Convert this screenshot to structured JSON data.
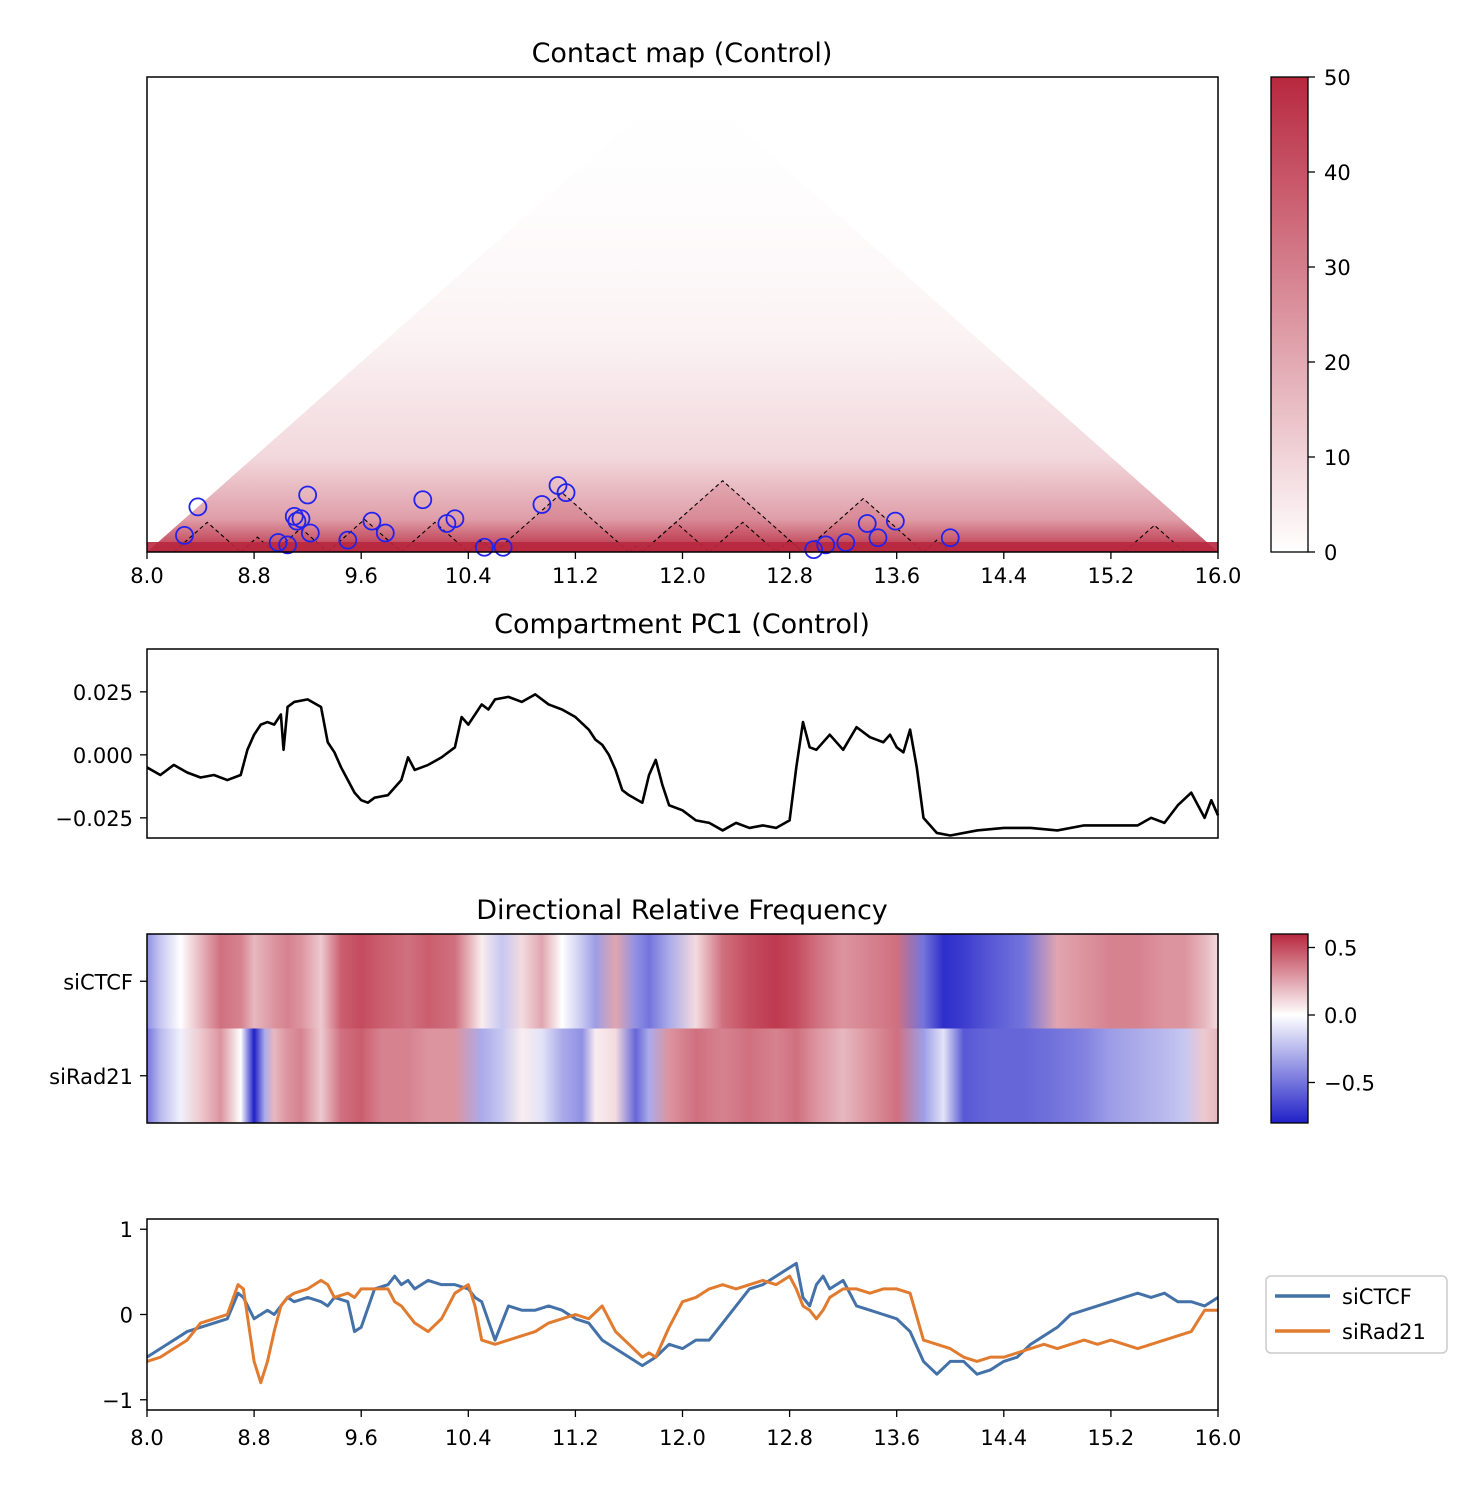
{
  "colors": {
    "map_high": "#b8283f",
    "map_low": "#ffffff",
    "loop_circle": "#2222ee",
    "pc1_line": "#000000",
    "drf_positive": "#b8283f",
    "drf_negative": "#2020c8",
    "sictcf": "#4472a8",
    "sirad21": "#e07b30"
  },
  "chart_data": [
    {
      "type": "heatmap",
      "title": "Contact map (Control)",
      "xlabel": "",
      "ylabel": "",
      "xlim": [
        8.0,
        16.0
      ],
      "xticks": [
        "8.0",
        "8.8",
        "9.6",
        "10.4",
        "11.2",
        "12.0",
        "12.8",
        "13.6",
        "14.4",
        "15.2",
        "16.0"
      ],
      "colorbar": {
        "min": 0,
        "max": 50,
        "ticks": [
          "0",
          "10",
          "20",
          "30",
          "40",
          "50"
        ]
      },
      "tads": [
        [
          8.2,
          8.7
        ],
        [
          8.7,
          8.95
        ],
        [
          8.95,
          9.35
        ],
        [
          9.35,
          9.9
        ],
        [
          9.9,
          10.4
        ],
        [
          10.4,
          10.6
        ],
        [
          10.6,
          11.6
        ],
        [
          11.6,
          11.7
        ],
        [
          11.7,
          12.2
        ],
        [
          11.7,
          12.9
        ],
        [
          12.2,
          12.7
        ],
        [
          12.7,
          12.9
        ],
        [
          12.9,
          13.8
        ],
        [
          13.8,
          14.0
        ],
        [
          15.3,
          15.75
        ]
      ],
      "loops": [
        [
          8.28,
          0.035
        ],
        [
          8.38,
          0.095
        ],
        [
          8.98,
          0.02
        ],
        [
          9.05,
          0.015
        ],
        [
          9.1,
          0.075
        ],
        [
          9.12,
          0.065
        ],
        [
          9.15,
          0.07
        ],
        [
          9.2,
          0.12
        ],
        [
          9.22,
          0.04
        ],
        [
          9.5,
          0.025
        ],
        [
          9.68,
          0.065
        ],
        [
          9.78,
          0.04
        ],
        [
          10.06,
          0.11
        ],
        [
          10.24,
          0.06
        ],
        [
          10.3,
          0.07
        ],
        [
          10.52,
          0.01
        ],
        [
          10.66,
          0.01
        ],
        [
          10.95,
          0.1
        ],
        [
          11.07,
          0.14
        ],
        [
          11.13,
          0.125
        ],
        [
          12.98,
          0.005
        ],
        [
          13.07,
          0.015
        ],
        [
          13.22,
          0.02
        ],
        [
          13.38,
          0.06
        ],
        [
          13.46,
          0.03
        ],
        [
          13.59,
          0.065
        ],
        [
          14.0,
          0.03
        ]
      ]
    },
    {
      "type": "line",
      "title": "Compartment PC1 (Control)",
      "xlabel": "",
      "ylabel": "",
      "xlim": [
        8.0,
        16.0
      ],
      "ylim": [
        -0.033,
        0.042
      ],
      "yticks": [
        "0.025",
        "0.000",
        "−0.025"
      ],
      "x": [
        8.0,
        8.1,
        8.2,
        8.3,
        8.4,
        8.5,
        8.6,
        8.7,
        8.75,
        8.8,
        8.85,
        8.9,
        8.95,
        9.0,
        9.02,
        9.05,
        9.1,
        9.2,
        9.3,
        9.35,
        9.4,
        9.45,
        9.5,
        9.55,
        9.6,
        9.65,
        9.7,
        9.8,
        9.9,
        9.95,
        10.0,
        10.1,
        10.2,
        10.3,
        10.35,
        10.4,
        10.5,
        10.55,
        10.6,
        10.7,
        10.8,
        10.9,
        11.0,
        11.1,
        11.2,
        11.3,
        11.35,
        11.4,
        11.45,
        11.5,
        11.55,
        11.6,
        11.7,
        11.75,
        11.8,
        11.85,
        11.9,
        12.0,
        12.1,
        12.2,
        12.3,
        12.4,
        12.5,
        12.6,
        12.7,
        12.8,
        12.85,
        12.9,
        12.95,
        13.0,
        13.1,
        13.2,
        13.3,
        13.4,
        13.5,
        13.55,
        13.6,
        13.65,
        13.7,
        13.75,
        13.8,
        13.9,
        14.0,
        14.2,
        14.4,
        14.6,
        14.8,
        15.0,
        15.2,
        15.4,
        15.5,
        15.6,
        15.7,
        15.8,
        15.9,
        15.95,
        16.0
      ],
      "y": [
        -0.005,
        -0.008,
        -0.004,
        -0.007,
        -0.009,
        -0.008,
        -0.01,
        -0.008,
        0.002,
        0.008,
        0.012,
        0.013,
        0.012,
        0.016,
        0.002,
        0.019,
        0.021,
        0.022,
        0.019,
        0.005,
        0.001,
        -0.005,
        -0.01,
        -0.015,
        -0.018,
        -0.019,
        -0.017,
        -0.016,
        -0.01,
        -0.001,
        -0.006,
        -0.004,
        -0.001,
        0.003,
        0.015,
        0.012,
        0.02,
        0.018,
        0.022,
        0.023,
        0.021,
        0.024,
        0.02,
        0.018,
        0.015,
        0.01,
        0.006,
        0.004,
        0.0,
        -0.006,
        -0.014,
        -0.016,
        -0.019,
        -0.008,
        -0.002,
        -0.012,
        -0.02,
        -0.022,
        -0.026,
        -0.027,
        -0.03,
        -0.027,
        -0.029,
        -0.028,
        -0.029,
        -0.026,
        -0.005,
        0.013,
        0.003,
        0.002,
        0.008,
        0.002,
        0.011,
        0.007,
        0.005,
        0.008,
        0.003,
        0.001,
        0.01,
        -0.005,
        -0.025,
        -0.031,
        -0.032,
        -0.03,
        -0.029,
        -0.029,
        -0.03,
        -0.028,
        -0.028,
        -0.028,
        -0.025,
        -0.027,
        -0.02,
        -0.015,
        -0.025,
        -0.018,
        -0.024
      ]
    },
    {
      "type": "heatmap",
      "title": "Directional Relative Frequency",
      "xlabel": "",
      "ylabel": "",
      "xlim": [
        8.0,
        16.0
      ],
      "rows": [
        "siCTCF",
        "siRad21"
      ],
      "colorbar": {
        "min": -0.8,
        "max": 0.6,
        "ticks": [
          "0.5",
          "0.0",
          "−0.5"
        ]
      },
      "x": [
        8.0,
        8.1,
        8.25,
        8.4,
        8.55,
        8.7,
        8.8,
        8.88,
        8.95,
        9.05,
        9.15,
        9.3,
        9.45,
        9.6,
        9.75,
        9.95,
        10.1,
        10.3,
        10.5,
        10.65,
        10.8,
        10.95,
        11.1,
        11.25,
        11.35,
        11.5,
        11.65,
        11.75,
        11.9,
        12.1,
        12.3,
        12.5,
        12.7,
        12.85,
        13.0,
        13.2,
        13.4,
        13.6,
        13.8,
        13.95,
        14.1,
        14.3,
        14.55,
        14.8,
        15.0,
        15.2,
        15.4,
        15.6,
        15.75,
        15.9,
        16.0
      ],
      "values": [
        [
          -0.4,
          -0.2,
          0.0,
          0.2,
          0.4,
          0.35,
          0.2,
          0.25,
          0.3,
          0.35,
          0.3,
          0.15,
          0.45,
          0.5,
          0.45,
          0.4,
          0.45,
          0.4,
          0.05,
          -0.2,
          0.1,
          0.25,
          0.0,
          -0.2,
          -0.35,
          0.25,
          -0.4,
          -0.5,
          -0.3,
          0.1,
          0.4,
          0.5,
          0.55,
          0.5,
          0.4,
          0.3,
          0.35,
          0.4,
          -0.5,
          -0.75,
          -0.7,
          -0.6,
          -0.5,
          0.25,
          0.3,
          0.35,
          0.35,
          0.3,
          0.3,
          0.2,
          0.1
        ],
        [
          -0.5,
          -0.25,
          -0.05,
          0.15,
          0.3,
          0.0,
          -0.8,
          -0.3,
          0.2,
          0.3,
          0.35,
          0.15,
          0.4,
          0.45,
          0.35,
          0.35,
          0.3,
          0.3,
          -0.3,
          -0.2,
          0.05,
          -0.1,
          -0.3,
          -0.4,
          0.05,
          0.1,
          -0.55,
          -0.3,
          0.3,
          0.4,
          0.35,
          0.4,
          0.35,
          0.4,
          0.3,
          0.2,
          0.3,
          0.4,
          -0.35,
          -0.1,
          -0.6,
          -0.55,
          -0.55,
          -0.5,
          -0.45,
          -0.35,
          -0.3,
          -0.25,
          -0.2,
          0.15,
          0.2
        ]
      ]
    },
    {
      "type": "line",
      "title": "",
      "xlabel": "",
      "ylabel": "",
      "xlim": [
        8.0,
        16.0
      ],
      "ylim": [
        -1.12,
        1.12
      ],
      "xticks": [
        "8.0",
        "8.8",
        "9.6",
        "10.4",
        "11.2",
        "12.0",
        "12.8",
        "13.6",
        "14.4",
        "15.2",
        "16.0"
      ],
      "yticks": [
        "1",
        "0",
        "−1"
      ],
      "legend": "right",
      "x": [
        8.0,
        8.1,
        8.2,
        8.3,
        8.4,
        8.5,
        8.6,
        8.68,
        8.72,
        8.8,
        8.85,
        8.9,
        8.95,
        9.0,
        9.05,
        9.1,
        9.2,
        9.3,
        9.35,
        9.4,
        9.5,
        9.55,
        9.6,
        9.7,
        9.8,
        9.85,
        9.9,
        9.95,
        10.0,
        10.1,
        10.2,
        10.3,
        10.4,
        10.45,
        10.5,
        10.6,
        10.7,
        10.8,
        10.9,
        11.0,
        11.1,
        11.2,
        11.3,
        11.4,
        11.5,
        11.6,
        11.7,
        11.75,
        11.8,
        11.9,
        12.0,
        12.1,
        12.2,
        12.3,
        12.4,
        12.5,
        12.6,
        12.7,
        12.8,
        12.85,
        12.9,
        12.95,
        13.0,
        13.05,
        13.1,
        13.2,
        13.3,
        13.4,
        13.5,
        13.6,
        13.7,
        13.8,
        13.9,
        14.0,
        14.1,
        14.2,
        14.3,
        14.4,
        14.5,
        14.6,
        14.7,
        14.8,
        14.9,
        15.0,
        15.1,
        15.2,
        15.3,
        15.4,
        15.5,
        15.6,
        15.7,
        15.8,
        15.9,
        16.0
      ],
      "series": [
        {
          "name": "siCTCF",
          "values": [
            -0.5,
            -0.4,
            -0.3,
            -0.2,
            -0.15,
            -0.1,
            -0.05,
            0.25,
            0.2,
            -0.05,
            0.0,
            0.05,
            0.0,
            0.1,
            0.2,
            0.15,
            0.2,
            0.15,
            0.1,
            0.2,
            0.15,
            -0.2,
            -0.15,
            0.3,
            0.35,
            0.45,
            0.35,
            0.4,
            0.3,
            0.4,
            0.35,
            0.35,
            0.3,
            0.2,
            0.15,
            -0.3,
            0.1,
            0.05,
            0.05,
            0.1,
            0.05,
            -0.05,
            -0.1,
            -0.3,
            -0.4,
            -0.5,
            -0.6,
            -0.55,
            -0.5,
            -0.35,
            -0.4,
            -0.3,
            -0.3,
            -0.1,
            0.1,
            0.3,
            0.35,
            0.45,
            0.55,
            0.6,
            0.2,
            0.1,
            0.35,
            0.45,
            0.3,
            0.4,
            0.1,
            0.05,
            0.0,
            -0.05,
            -0.2,
            -0.55,
            -0.7,
            -0.55,
            -0.55,
            -0.7,
            -0.65,
            -0.55,
            -0.5,
            -0.35,
            -0.25,
            -0.15,
            0.0,
            0.05,
            0.1,
            0.15,
            0.2,
            0.25,
            0.2,
            0.25,
            0.15,
            0.15,
            0.1,
            0.2
          ]
        },
        {
          "name": "siRad21",
          "values": [
            -0.55,
            -0.5,
            -0.4,
            -0.3,
            -0.1,
            -0.05,
            0.0,
            0.35,
            0.3,
            -0.55,
            -0.8,
            -0.55,
            -0.2,
            0.1,
            0.2,
            0.25,
            0.3,
            0.4,
            0.35,
            0.2,
            0.25,
            0.2,
            0.3,
            0.3,
            0.3,
            0.15,
            0.1,
            0.0,
            -0.1,
            -0.2,
            -0.05,
            0.25,
            0.35,
            0.1,
            -0.3,
            -0.35,
            -0.3,
            -0.25,
            -0.2,
            -0.1,
            -0.05,
            0.0,
            -0.05,
            0.1,
            -0.2,
            -0.35,
            -0.5,
            -0.45,
            -0.5,
            -0.15,
            0.15,
            0.2,
            0.3,
            0.35,
            0.3,
            0.35,
            0.4,
            0.35,
            0.45,
            0.3,
            0.1,
            0.05,
            -0.05,
            0.05,
            0.2,
            0.3,
            0.3,
            0.25,
            0.3,
            0.3,
            0.25,
            -0.3,
            -0.35,
            -0.4,
            -0.5,
            -0.55,
            -0.5,
            -0.5,
            -0.45,
            -0.4,
            -0.35,
            -0.4,
            -0.35,
            -0.3,
            -0.35,
            -0.3,
            -0.35,
            -0.4,
            -0.35,
            -0.3,
            -0.25,
            -0.2,
            0.05,
            0.05
          ]
        }
      ]
    }
  ]
}
